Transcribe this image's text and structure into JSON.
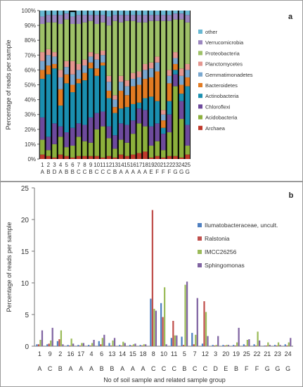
{
  "chart_data": [
    {
      "type": "bar",
      "stacked": true,
      "panel_label": "a",
      "ylabel": "Percentage of reads per sample",
      "ylim": [
        0,
        100
      ],
      "y_ticks": [
        "0%",
        "10%",
        "20%",
        "30%",
        "40%",
        "50%",
        "60%",
        "70%",
        "80%",
        "90%",
        "100%"
      ],
      "categories": [
        "1",
        "2",
        "3",
        "4",
        "5",
        "6",
        "7",
        "8",
        "9",
        "10",
        "11",
        "12",
        "13",
        "14",
        "15",
        "16",
        "17",
        "18",
        "19",
        "20",
        "21",
        "22",
        "23",
        "24",
        "25"
      ],
      "groups": [
        "A",
        "B",
        "D",
        "A",
        "B",
        "B",
        "C",
        "C",
        "B",
        "C",
        "C",
        "C",
        "B",
        "A",
        "A",
        "A",
        "A",
        "A",
        "E",
        "F",
        "F",
        "F",
        "G",
        "G",
        "G"
      ],
      "legend_position": "right",
      "series": [
        {
          "name": "Archaea",
          "color": "#c0392b",
          "values": [
            3,
            2,
            1,
            3,
            2,
            1,
            2,
            2,
            2,
            2,
            1,
            2,
            1,
            3,
            2,
            3,
            4,
            5,
            1,
            2,
            1,
            2,
            2,
            1,
            3
          ]
        },
        {
          "name": "Acidobacteria",
          "color": "#8cb03c",
          "values": [
            10,
            4,
            9,
            12,
            6,
            8,
            13,
            10,
            9,
            18,
            21,
            12,
            6,
            10,
            9,
            14,
            20,
            17,
            8,
            10,
            5,
            16,
            47,
            26,
            6
          ]
        },
        {
          "name": "Chloroflexi",
          "color": "#6d4a9c",
          "values": [
            15,
            9,
            14,
            7,
            10,
            12,
            9,
            11,
            17,
            11,
            10,
            8,
            9,
            11,
            12,
            9,
            10,
            11,
            13,
            12,
            11,
            12,
            8,
            12,
            14
          ]
        },
        {
          "name": "Actinobacteria",
          "color": "#1a8fb0",
          "values": [
            26,
            42,
            37,
            14,
            33,
            24,
            27,
            30,
            33,
            25,
            31,
            19,
            15,
            10,
            12,
            11,
            4,
            8,
            20,
            15,
            4,
            9,
            3,
            5,
            26
          ]
        },
        {
          "name": "Bacteroidetes",
          "color": "#e27b22",
          "values": [
            6,
            6,
            3,
            11,
            6,
            5,
            3,
            5,
            4,
            5,
            2,
            5,
            4,
            12,
            8,
            12,
            12,
            13,
            13,
            20,
            5,
            12,
            4,
            6,
            6
          ]
        },
        {
          "name": "Gemmatimonadetes",
          "color": "#79a7cf",
          "values": [
            6,
            7,
            5,
            8,
            5,
            7,
            6,
            5,
            4,
            6,
            5,
            6,
            5,
            6,
            6,
            5,
            5,
            6,
            6,
            6,
            4,
            5,
            4,
            6,
            5
          ]
        },
        {
          "name": "Planctomycetes",
          "color": "#e4968f",
          "values": [
            6,
            4,
            3,
            5,
            4,
            9,
            4,
            4,
            3,
            4,
            3,
            4,
            3,
            4,
            4,
            4,
            4,
            4,
            4,
            4,
            3,
            4,
            4,
            5,
            4
          ]
        },
        {
          "name": "Proteobacteria",
          "color": "#9ec168",
          "values": [
            19,
            18,
            20,
            31,
            28,
            25,
            27,
            25,
            21,
            20,
            19,
            34,
            50,
            36,
            40,
            35,
            33,
            28,
            28,
            24,
            60,
            33,
            22,
            33,
            28
          ]
        },
        {
          "name": "Verrucomicrobia",
          "color": "#9b86bf",
          "values": [
            5,
            5,
            5,
            6,
            4,
            5,
            6,
            5,
            4,
            6,
            5,
            6,
            4,
            5,
            4,
            4,
            5,
            5,
            4,
            4,
            4,
            4,
            4,
            4,
            5
          ]
        },
        {
          "name": "other",
          "color": "#68b8d3",
          "values": [
            4,
            3,
            3,
            3,
            2,
            3,
            3,
            3,
            3,
            3,
            3,
            4,
            3,
            3,
            3,
            3,
            3,
            3,
            3,
            3,
            3,
            3,
            2,
            2,
            3
          ]
        }
      ]
    },
    {
      "type": "bar",
      "panel_label": "b",
      "ylabel": "Percentage of reads per sample",
      "xlabel": "No of soil sample and related sample group",
      "ylim": [
        0,
        25
      ],
      "y_ticks": [
        "0",
        "5",
        "10",
        "15",
        "20",
        "25"
      ],
      "categories": [
        "1",
        "9",
        "2",
        "16",
        "17",
        "4",
        "6",
        "13",
        "14",
        "15",
        "18",
        "8",
        "10",
        "11",
        "5",
        "7",
        "12",
        "3",
        "20",
        "19",
        "25",
        "22",
        "21",
        "23",
        "24"
      ],
      "groups": [
        "A",
        "C",
        "B",
        "A",
        "A",
        "A",
        "B",
        "B",
        "A",
        "A",
        "A",
        "C",
        "C",
        "C",
        "B",
        "C",
        "C",
        "D",
        "E",
        "B",
        "F",
        "F",
        "G",
        "G",
        "G"
      ],
      "legend_position": "right",
      "series": [
        {
          "name": "Ilumatobacteraceae, uncult.",
          "color": "#4e7fc0",
          "values": [
            0.3,
            0.3,
            0.8,
            0.2,
            0.2,
            0.2,
            0.8,
            0.5,
            0.2,
            0.2,
            0.2,
            7.5,
            6.8,
            1.3,
            1.5,
            2.1,
            0.4,
            0.2,
            0.2,
            0.2,
            0.3,
            0.3,
            0.1,
            0.2,
            0.3
          ]
        },
        {
          "name": "Ralstonia",
          "color": "#c0504d",
          "values": [
            0.3,
            0.4,
            1.1,
            0.1,
            0.1,
            0.1,
            0.3,
            0.1,
            0.1,
            0.1,
            0.1,
            21.5,
            4.6,
            4.0,
            0.2,
            0.3,
            7.1,
            0.1,
            0.1,
            0.1,
            0.1,
            0.1,
            0.1,
            0.1,
            0.1
          ]
        },
        {
          "name": "IMCC26256",
          "color": "#9bbb59",
          "values": [
            1.0,
            0.9,
            2.5,
            1.2,
            0.5,
            0.5,
            1.3,
            0.9,
            0.7,
            0.3,
            0.3,
            5.9,
            9.3,
            1.7,
            9.7,
            1.8,
            5.4,
            0.2,
            0.2,
            0.6,
            1.0,
            2.3,
            0.6,
            0.6,
            0.6
          ]
        },
        {
          "name": "Sphingomonas",
          "color": "#8064a2",
          "values": [
            2.5,
            2.9,
            0.3,
            0.4,
            0.5,
            1.0,
            1.8,
            1.3,
            0.5,
            0.4,
            0.3,
            5.6,
            0.3,
            1.7,
            10.2,
            7.6,
            1.6,
            1.6,
            0.2,
            2.9,
            1.1,
            0.9,
            0.2,
            0.2,
            1.3
          ]
        }
      ]
    }
  ]
}
